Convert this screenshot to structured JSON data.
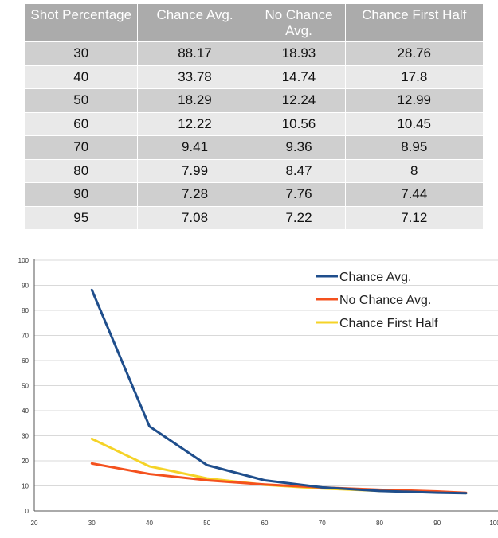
{
  "table": {
    "headers": [
      "Shot Percentage",
      "Chance Avg.",
      "No Chance Avg.",
      "Chance First Half"
    ],
    "rows": [
      [
        "30",
        "88.17",
        "18.93",
        "28.76"
      ],
      [
        "40",
        "33.78",
        "14.74",
        "17.8"
      ],
      [
        "50",
        "18.29",
        "12.24",
        "12.99"
      ],
      [
        "60",
        "12.22",
        "10.56",
        "10.45"
      ],
      [
        "70",
        "9.41",
        "9.36",
        "8.95"
      ],
      [
        "80",
        "7.99",
        "8.47",
        "8"
      ],
      [
        "90",
        "7.28",
        "7.76",
        "7.44"
      ],
      [
        "95",
        "7.08",
        "7.22",
        "7.12"
      ]
    ]
  },
  "chart_data": {
    "type": "line",
    "x": [
      30,
      40,
      50,
      60,
      70,
      80,
      90,
      95
    ],
    "series": [
      {
        "name": "Chance Avg.",
        "color": "#1f4e8c",
        "values": [
          88.17,
          33.78,
          18.29,
          12.22,
          9.41,
          7.99,
          7.28,
          7.08
        ]
      },
      {
        "name": "No Chance Avg.",
        "color": "#f4511e",
        "values": [
          18.93,
          14.74,
          12.24,
          10.56,
          9.36,
          8.47,
          7.76,
          7.22
        ]
      },
      {
        "name": "Chance First Half",
        "color": "#f5d327",
        "values": [
          28.76,
          17.8,
          12.99,
          10.45,
          8.95,
          8,
          7.44,
          7.12
        ]
      }
    ],
    "xlim": [
      20,
      100
    ],
    "ylim": [
      0,
      100
    ],
    "xticks": [
      20,
      30,
      40,
      50,
      60,
      70,
      80,
      90,
      100
    ],
    "yticks": [
      0,
      10,
      20,
      30,
      40,
      50,
      60,
      70,
      80,
      90,
      100
    ],
    "grid": "horizontal",
    "legend": "top-right",
    "title": "",
    "xlabel": "",
    "ylabel": ""
  }
}
